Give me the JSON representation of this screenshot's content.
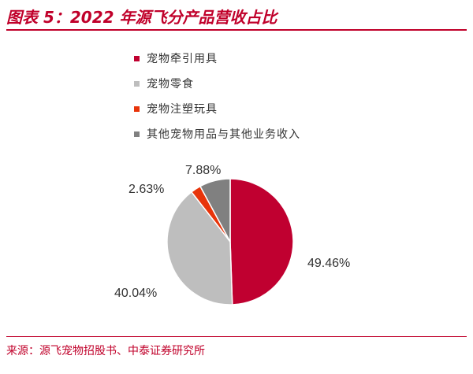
{
  "header": {
    "title": "图表 5：2022 年源飞分产品营收占比"
  },
  "footer": {
    "source": "来源：源飞宠物招股书、中泰证券研究所"
  },
  "chart_data": {
    "type": "pie",
    "title": "",
    "legend_position": "top",
    "slices": [
      {
        "name": "宠物牵引用具",
        "value": 49.46,
        "label": "49.46%",
        "color": "#C00030"
      },
      {
        "name": "宠物零食",
        "value": 40.04,
        "label": "40.04%",
        "color": "#BEBEBE"
      },
      {
        "name": "宠物注塑玩具",
        "value": 2.63,
        "label": "2.63%",
        "color": "#E8340A"
      },
      {
        "name": "其他宠物用品与其他业务收入",
        "value": 7.88,
        "label": "7.88%",
        "color": "#808080"
      }
    ]
  }
}
